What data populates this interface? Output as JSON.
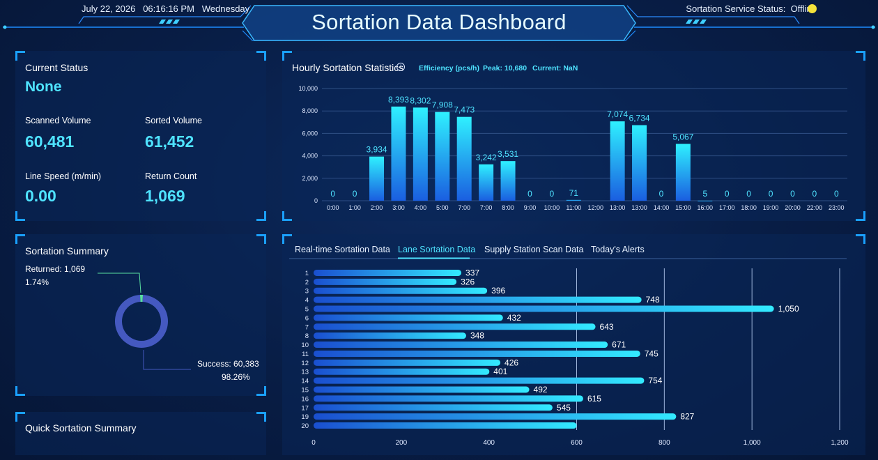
{
  "header": {
    "date": "July 22, 2026",
    "time": "06:16:16 PM",
    "weekday": "Wednesday",
    "title": "Sortation Data Dashboard",
    "status_label": "Sortation Service Status:",
    "status_value": "Offline",
    "status_color": "#f4e23a"
  },
  "current_status": {
    "title": "Current Status",
    "state": "None",
    "scanned_label": "Scanned Volume",
    "scanned_value": "60,481",
    "sorted_label": "Sorted Volume",
    "sorted_value": "61,452",
    "speed_label": "Line Speed (m/min)",
    "speed_value": "0.00",
    "return_label": "Return Count",
    "return_value": "1,069"
  },
  "summary": {
    "title": "Sortation Summary",
    "returned_label": "Returned: 1,069",
    "returned_pct": "1.74%",
    "success_label": "Success: 60,383",
    "success_pct": "98.26%"
  },
  "quick": {
    "title": "Quick Sortation Summary"
  },
  "hourly": {
    "title": "Hourly Sortation Statistics",
    "efficiency": "Efficiency (pcs/h)",
    "peak": "Peak: 10,680",
    "current": "Current: NaN"
  },
  "tabs": [
    "Real-time Sortation Data",
    "Lane Sortation Data",
    "Supply Station Scan Data",
    "Today's Alerts"
  ],
  "active_tab": 1,
  "colors": {
    "accent": "#4fe3ff",
    "corner": "#1aa0ff",
    "donut": "#4559c0",
    "donut_small": "#59e0a0"
  },
  "chart_data": [
    {
      "type": "bar",
      "title": "Hourly Sortation Statistics",
      "categories": [
        "0:00",
        "1:00",
        "2:00",
        "3:00",
        "4:00",
        "5:00",
        "7:00",
        "7:00",
        "8:00",
        "9:00",
        "10:00",
        "11:00",
        "12:00",
        "13:00",
        "13:00",
        "14:00",
        "15:00",
        "16:00",
        "17:00",
        "18:00",
        "19:00",
        "20:00",
        "22:00",
        "23:00"
      ],
      "values": [
        0,
        0,
        3934,
        8393,
        8302,
        7908,
        7473,
        3242,
        3531,
        0,
        0,
        71,
        null,
        7074,
        6734,
        0,
        5067,
        5,
        0,
        0,
        0,
        0,
        0,
        0
      ],
      "labels": [
        "0",
        "0",
        "3,934",
        "8,393",
        "8,302",
        "7,908",
        "7,473",
        "3,242",
        "3,531",
        "0",
        "0",
        "71",
        "",
        "7,074",
        "6,734",
        "0",
        "5,067",
        "5",
        "0",
        "0",
        "0",
        "0",
        "0",
        "0"
      ],
      "yticks": [
        "0",
        "2,000",
        "4,000",
        "6,000",
        "8,000",
        "10,000"
      ],
      "ylim": [
        0,
        10000
      ],
      "grid": true
    },
    {
      "type": "bar",
      "orientation": "horizontal",
      "title": "Lane Sortation Data",
      "categories": [
        "1",
        "2",
        "3",
        "4",
        "5",
        "6",
        "7",
        "8",
        "10",
        "11",
        "12",
        "13",
        "14",
        "15",
        "16",
        "17",
        "19",
        "20"
      ],
      "values": [
        337,
        326,
        396,
        748,
        1050,
        432,
        643,
        348,
        671,
        745,
        426,
        401,
        754,
        492,
        615,
        545,
        827,
        600
      ],
      "labels": [
        "337",
        "326",
        "396",
        "748",
        "1,050",
        "432",
        "643",
        "348",
        "671",
        "745",
        "426",
        "401",
        "754",
        "492",
        "615",
        "545",
        "827",
        ""
      ],
      "xticks": [
        {
          "v": 0,
          "t": "0"
        },
        {
          "v": 200,
          "t": "200"
        },
        {
          "v": 400,
          "t": "400"
        },
        {
          "v": 600,
          "t": "600"
        },
        {
          "v": 800,
          "t": "800"
        },
        {
          "v": 1000,
          "t": "1,000"
        },
        {
          "v": 1200,
          "t": "1,200"
        }
      ],
      "xlim": [
        0,
        1200
      ],
      "grid": true
    },
    {
      "type": "pie",
      "title": "Sortation Summary",
      "slices": [
        {
          "name": "Returned",
          "value": 1069
        },
        {
          "name": "Success",
          "value": 60383
        }
      ]
    }
  ]
}
